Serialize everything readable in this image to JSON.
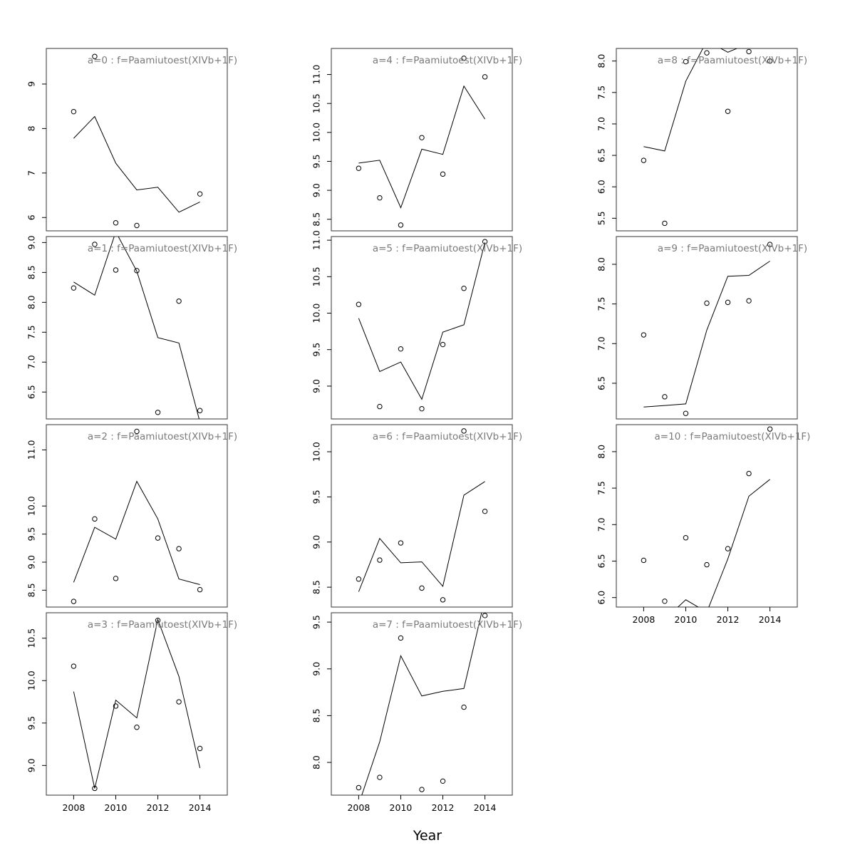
{
  "chart_data": {
    "type": "line",
    "xlabel": "Year",
    "x": [
      2008,
      2009,
      2010,
      2011,
      2012,
      2013,
      2014
    ],
    "xlim": [
      2006.7,
      2015.3
    ],
    "xticks": [
      2008,
      2010,
      2012,
      2014
    ],
    "legend": "none",
    "grid": false,
    "line_color": "#000000",
    "title_color": "#7a7a7a",
    "panels": [
      {
        "title": "a=0 : f=Paamiutoest(XIVb+1F)",
        "ylim": [
          5.7,
          9.8
        ],
        "yticks": [
          6,
          7,
          8,
          9
        ],
        "observed": [
          8.38,
          9.62,
          5.88,
          5.82,
          null,
          null,
          6.53
        ],
        "fitted": [
          7.78,
          8.27,
          7.22,
          6.62,
          6.68,
          6.12,
          6.35
        ]
      },
      {
        "title": "a=1 : f=Paamiutoest(XIVb+1F)",
        "ylim": [
          6.05,
          9.1
        ],
        "yticks": [
          6.5,
          7.0,
          7.5,
          8.0,
          8.5,
          9.0
        ],
        "observed": [
          8.24,
          8.97,
          8.54,
          8.53,
          6.16,
          8.02,
          6.19
        ],
        "fitted": [
          8.34,
          8.12,
          9.18,
          8.52,
          7.41,
          7.32,
          6.0
        ]
      },
      {
        "title": "a=2 : f=Paamiutoest(XIVb+1F)",
        "ylim": [
          8.2,
          11.45
        ],
        "yticks": [
          8.5,
          9.0,
          9.5,
          10.0,
          11.0
        ],
        "observed": [
          8.3,
          9.77,
          8.71,
          11.33,
          9.43,
          9.24,
          8.51
        ],
        "fitted": [
          8.64,
          9.62,
          9.41,
          10.44,
          9.77,
          8.7,
          8.6
        ]
      },
      {
        "title": "a=3 : f=Paamiutoest(XIVb+1F)",
        "ylim": [
          8.65,
          10.8
        ],
        "yticks": [
          9.0,
          9.5,
          10.0,
          10.5
        ],
        "observed": [
          10.17,
          8.73,
          9.7,
          9.45,
          10.71,
          9.75,
          9.2
        ],
        "fitted": [
          9.87,
          8.73,
          9.77,
          9.56,
          10.72,
          10.05,
          8.97
        ]
      },
      {
        "title": "a=4 : f=Paamiutoest(XIVb+1F)",
        "ylim": [
          8.3,
          11.45
        ],
        "yticks": [
          8.5,
          9.0,
          9.5,
          10.0,
          10.5,
          11.0
        ],
        "observed": [
          9.38,
          8.87,
          8.4,
          9.91,
          9.28,
          11.28,
          10.96
        ],
        "fitted": [
          9.47,
          9.52,
          8.7,
          9.71,
          9.62,
          10.8,
          10.23
        ]
      },
      {
        "title": "a=5 : f=Paamiutoest(XIVb+1F)",
        "ylim": [
          8.55,
          11.05
        ],
        "yticks": [
          9.0,
          9.5,
          10.0,
          10.5,
          11.0
        ],
        "observed": [
          10.12,
          8.72,
          9.51,
          8.69,
          9.57,
          10.34,
          10.98
        ],
        "fitted": [
          9.93,
          9.2,
          9.33,
          8.82,
          9.74,
          9.84,
          10.97
        ]
      },
      {
        "title": "a=6 : f=Paamiutoest(XIVb+1F)",
        "ylim": [
          8.28,
          10.3
        ],
        "yticks": [
          8.5,
          9.0,
          9.5,
          10.0
        ],
        "observed": [
          8.59,
          8.8,
          8.99,
          8.49,
          8.36,
          10.23,
          9.34
        ],
        "fitted": [
          8.45,
          9.04,
          8.77,
          8.78,
          8.51,
          9.52,
          9.67
        ]
      },
      {
        "title": "a=7 : f=Paamiutoest(XIVb+1F)",
        "ylim": [
          7.65,
          9.6
        ],
        "yticks": [
          8.0,
          8.5,
          9.0,
          9.5
        ],
        "observed": [
          7.73,
          7.84,
          9.33,
          7.71,
          7.8,
          8.59,
          9.57
        ],
        "fitted": [
          7.55,
          8.22,
          9.14,
          8.71,
          8.76,
          8.79,
          9.75
        ]
      },
      {
        "title": "a=8 : f=Paamiutoest(XIVb+1F)",
        "ylim": [
          5.3,
          8.2
        ],
        "yticks": [
          5.5,
          6.0,
          6.5,
          7.0,
          7.5,
          8.0
        ],
        "observed": [
          6.42,
          5.42,
          7.99,
          8.13,
          7.2,
          8.15,
          8.0
        ],
        "fitted": [
          6.64,
          6.57,
          7.68,
          8.32,
          8.14,
          8.28,
          8.22
        ]
      },
      {
        "title": "a=9 : f=Paamiutoest(XIVb+1F)",
        "ylim": [
          6.05,
          8.35
        ],
        "yticks": [
          6.5,
          7.0,
          7.5,
          8.0
        ],
        "observed": [
          7.11,
          6.33,
          6.12,
          7.51,
          7.52,
          7.54,
          8.25
        ],
        "fitted": [
          6.2,
          6.22,
          6.24,
          7.17,
          7.85,
          7.86,
          8.04
        ]
      },
      {
        "title": "a=10 : f=Paamiutoest(XIVb+1F)",
        "ylim": [
          5.87,
          8.37
        ],
        "yticks": [
          6.0,
          6.5,
          7.0,
          7.5,
          8.0
        ],
        "observed": [
          6.51,
          5.95,
          6.82,
          6.45,
          6.67,
          7.7,
          8.31
        ],
        "fitted": [
          5.8,
          5.7,
          5.97,
          5.8,
          6.53,
          7.39,
          7.62
        ]
      }
    ]
  }
}
